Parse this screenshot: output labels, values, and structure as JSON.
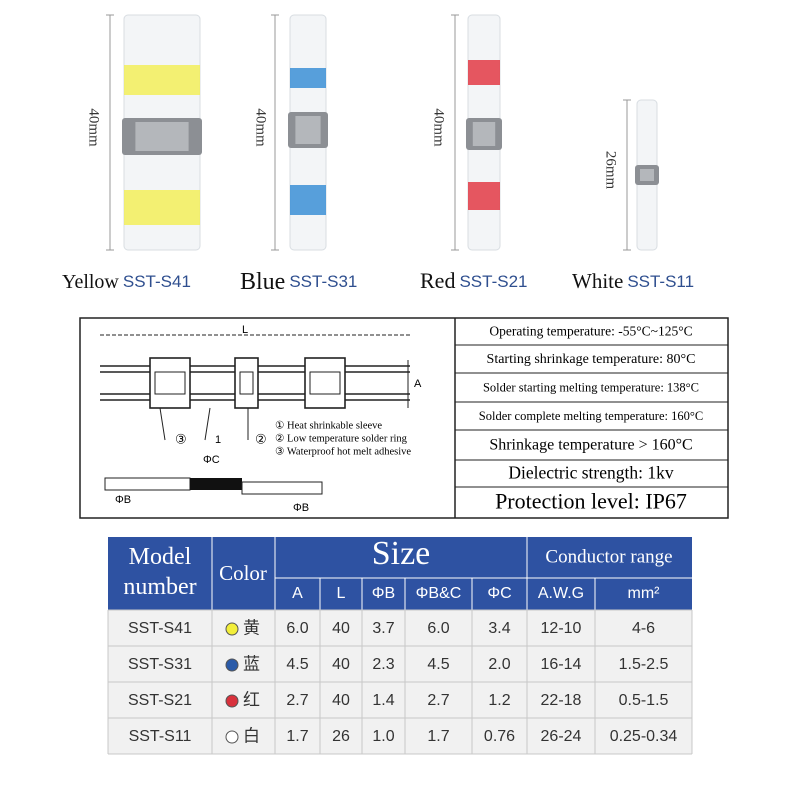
{
  "products": [
    {
      "name": "Yellow",
      "model": "SST-S41",
      "length": "40mm",
      "color": "#f2ee5a"
    },
    {
      "name": "Blue",
      "model": "SST-S31",
      "length": "40mm",
      "color": "#3b8fd6"
    },
    {
      "name": "Red",
      "model": "SST-S21",
      "length": "40mm",
      "color": "#e23a45"
    },
    {
      "name": "White",
      "model": "SST-S11",
      "length": "26mm",
      "color": "#f4f4f4"
    }
  ],
  "diagram": {
    "dim_L": "L",
    "dim_A": "A",
    "dim_C": "ΦC",
    "dim_B_left": "ΦB",
    "dim_B_right": "ΦB",
    "callout_3": "③",
    "callout_1": "1",
    "callout_2": "②",
    "legend": [
      "① Heat shrinkable sleeve",
      "② Low temperature solder ring",
      "③ Waterproof hot melt adhesive"
    ]
  },
  "specs": [
    "Operating temperature: -55°C~125°C",
    "Starting shrinkage temperature: 80°C",
    "Solder starting melting temperature: 138°C",
    "Solder complete melting temperature: 160°C",
    "Shrinkage temperature > 160°C",
    "Dielectric strength: 1kv",
    "Protection level: IP67"
  ],
  "table": {
    "model_header": "Model number",
    "color_header": "Color",
    "size_header": "Size",
    "conductor_header": "Conductor range",
    "sub_headers": [
      "A",
      "L",
      "ΦB",
      "ΦB&C",
      "ΦC",
      "A.W.G",
      "mm²"
    ],
    "rows": [
      {
        "model": "SST-S41",
        "dot": "#f2ee3a",
        "color": "黄",
        "cells": [
          "6.0",
          "40",
          "3.7",
          "6.0",
          "3.4",
          "12-10",
          "4-6"
        ]
      },
      {
        "model": "SST-S31",
        "dot": "#2a5aa8",
        "color": "蓝",
        "cells": [
          "4.5",
          "40",
          "2.3",
          "4.5",
          "2.0",
          "16-14",
          "1.5-2.5"
        ]
      },
      {
        "model": "SST-S21",
        "dot": "#d8313c",
        "color": "红",
        "cells": [
          "2.7",
          "40",
          "1.4",
          "2.7",
          "1.2",
          "22-18",
          "0.5-1.5"
        ]
      },
      {
        "model": "SST-S11",
        "dot": "#ffffff",
        "color": "白",
        "cells": [
          "1.7",
          "26",
          "1.0",
          "1.7",
          "0.76",
          "26-24",
          "0.25-0.34"
        ]
      }
    ]
  }
}
